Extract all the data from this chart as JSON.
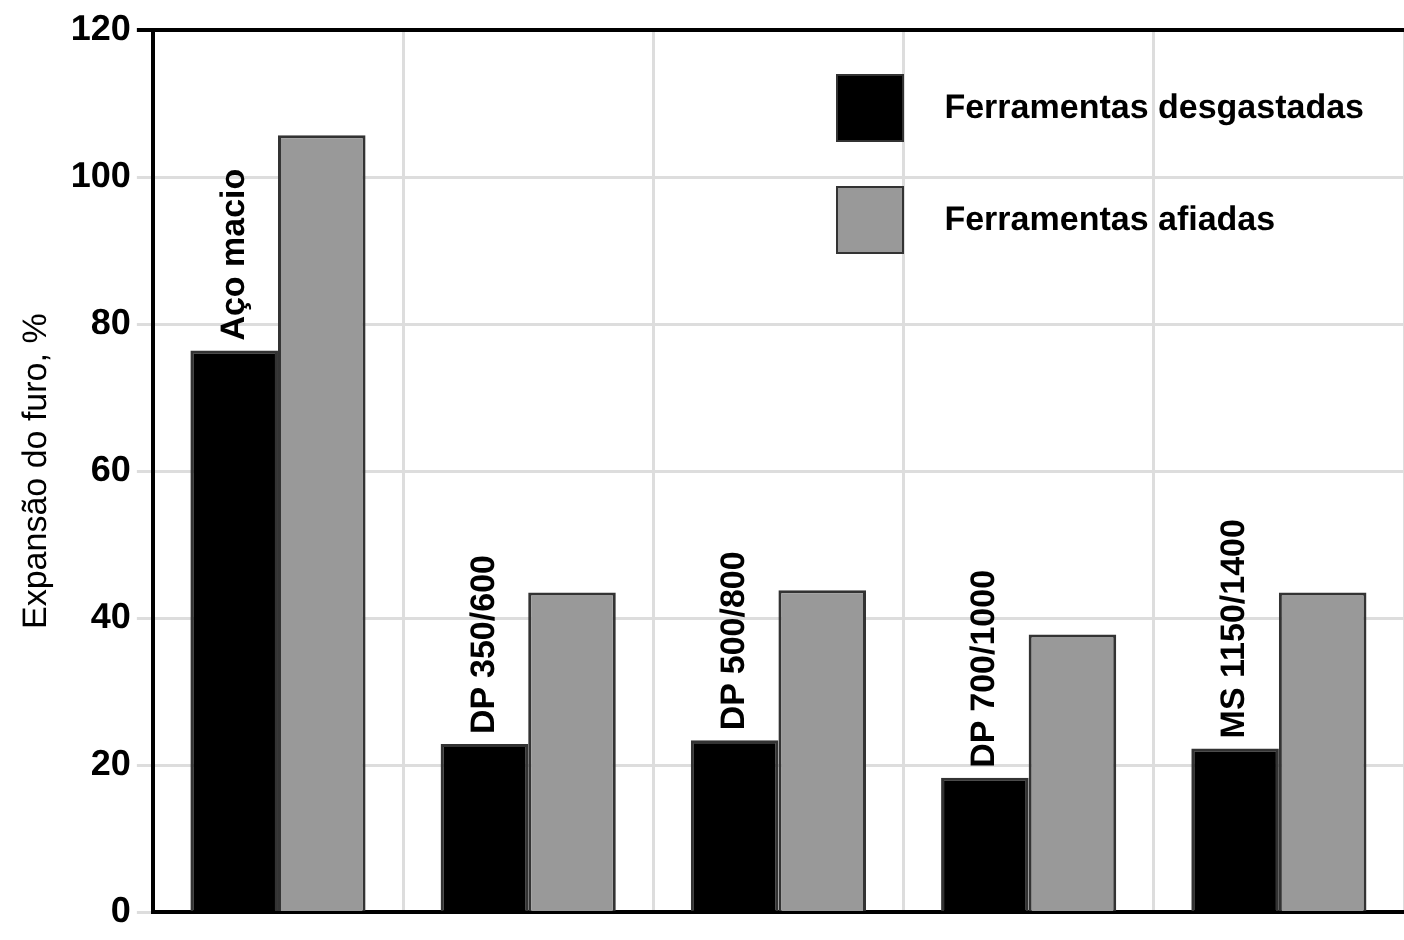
{
  "chart_data": {
    "type": "bar",
    "ylabel": "Expansão do furo, %",
    "categories": [
      "Aço macio",
      "DP 350/600",
      "DP 500/800",
      "DP 700/1000",
      "MS 1150/1400"
    ],
    "series": [
      {
        "name": "Ferramentas desgastadas",
        "color": "#000000",
        "values": [
          76.4,
          22.9,
          23.4,
          18.3,
          22.3
        ]
      },
      {
        "name": "Ferramentas afiadas",
        "color": "#999999",
        "values": [
          105.7,
          43.5,
          43.8,
          37.8,
          43.5
        ]
      }
    ],
    "ylim": [
      0,
      120
    ],
    "yticks": [
      0,
      20,
      40,
      60,
      80,
      100,
      120
    ],
    "grid": true,
    "legend": "top right",
    "tick_labels": "y"
  }
}
